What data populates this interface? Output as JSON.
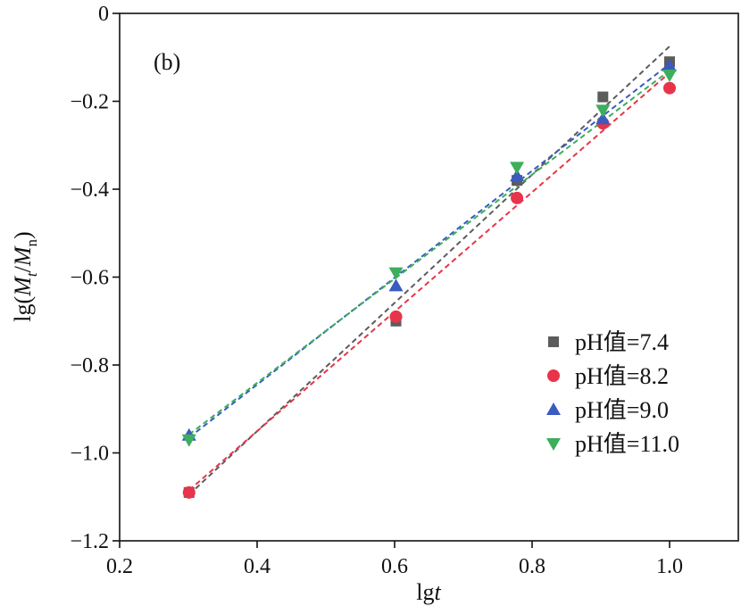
{
  "chart_data": {
    "type": "scatter",
    "panel_label": "(b)",
    "xlabel_main": "lg",
    "xlabel_italic": "t",
    "ylabel": {
      "prefix": "lg(",
      "m1": "M",
      "sub1": "t",
      "slash": "/",
      "m2": "M",
      "sub2": "n",
      "suffix": ")"
    },
    "xlim": [
      0.2,
      1.1
    ],
    "ylim": [
      -1.2,
      0
    ],
    "x_ticks": [
      0.2,
      0.4,
      0.6,
      0.8,
      1.0
    ],
    "x_tick_labels": [
      "0.2",
      "0.4",
      "0.6",
      "0.8",
      "1.0"
    ],
    "y_ticks": [
      0,
      -0.2,
      -0.4,
      -0.6,
      -0.8,
      -1.0,
      -1.2
    ],
    "y_tick_labels": [
      "0",
      "−0.2",
      "−0.4",
      "−0.6",
      "−0.8",
      "−1.0",
      "−1.2"
    ],
    "grid": false,
    "legend_position": "bottom-right",
    "x": [
      0.301,
      0.602,
      0.778,
      0.903,
      1.0
    ],
    "series": [
      {
        "name": "pH值=7.4",
        "marker": "square",
        "color": "#5c5c5c",
        "values": [
          -1.09,
          -0.7,
          -0.38,
          -0.19,
          -0.11
        ],
        "fit": [
          [
            0.301,
            -1.095
          ],
          [
            1.0,
            -0.075
          ]
        ]
      },
      {
        "name": "pH值=8.2",
        "marker": "circle",
        "color": "#e8344a",
        "values": [
          -1.09,
          -0.69,
          -0.42,
          -0.25,
          -0.17
        ],
        "fit": [
          [
            0.301,
            -1.085
          ],
          [
            1.0,
            -0.135
          ]
        ]
      },
      {
        "name": "pH值=9.0",
        "marker": "triangle-up",
        "color": "#3a5bbf",
        "values": [
          -0.96,
          -0.62,
          -0.37,
          -0.24,
          -0.12
        ],
        "fit": [
          [
            0.301,
            -0.965
          ],
          [
            1.0,
            -0.115
          ]
        ]
      },
      {
        "name": "pH值=11.0",
        "marker": "triangle-down",
        "color": "#3cae5c",
        "values": [
          -0.97,
          -0.59,
          -0.35,
          -0.22,
          -0.14
        ],
        "fit": [
          [
            0.301,
            -0.958
          ],
          [
            1.0,
            -0.13
          ]
        ]
      }
    ]
  }
}
